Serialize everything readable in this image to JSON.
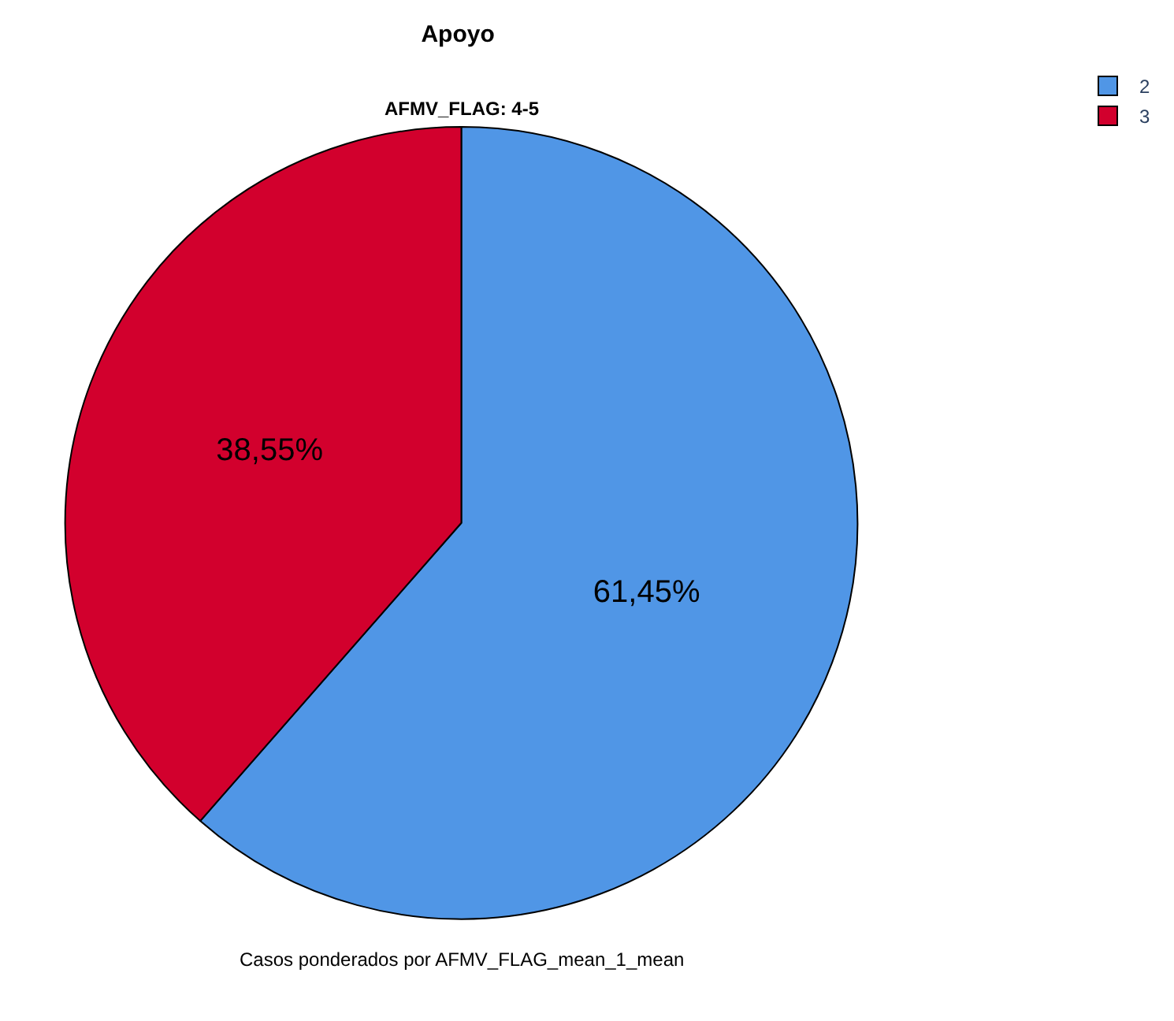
{
  "chart_data": {
    "type": "pie",
    "title": "Apoyo",
    "subtitle": "AFMV_FLAG: 4-5",
    "categories": [
      "2",
      "3"
    ],
    "values": [
      61.45,
      38.55
    ],
    "colors": [
      "#5096e6",
      "#d2002d"
    ],
    "value_labels": [
      "61,45%",
      "38,55%"
    ],
    "legend": "top right",
    "annotations": [
      "Casos ponderados por AFMV_FLAG_mean_1_mean"
    ]
  }
}
